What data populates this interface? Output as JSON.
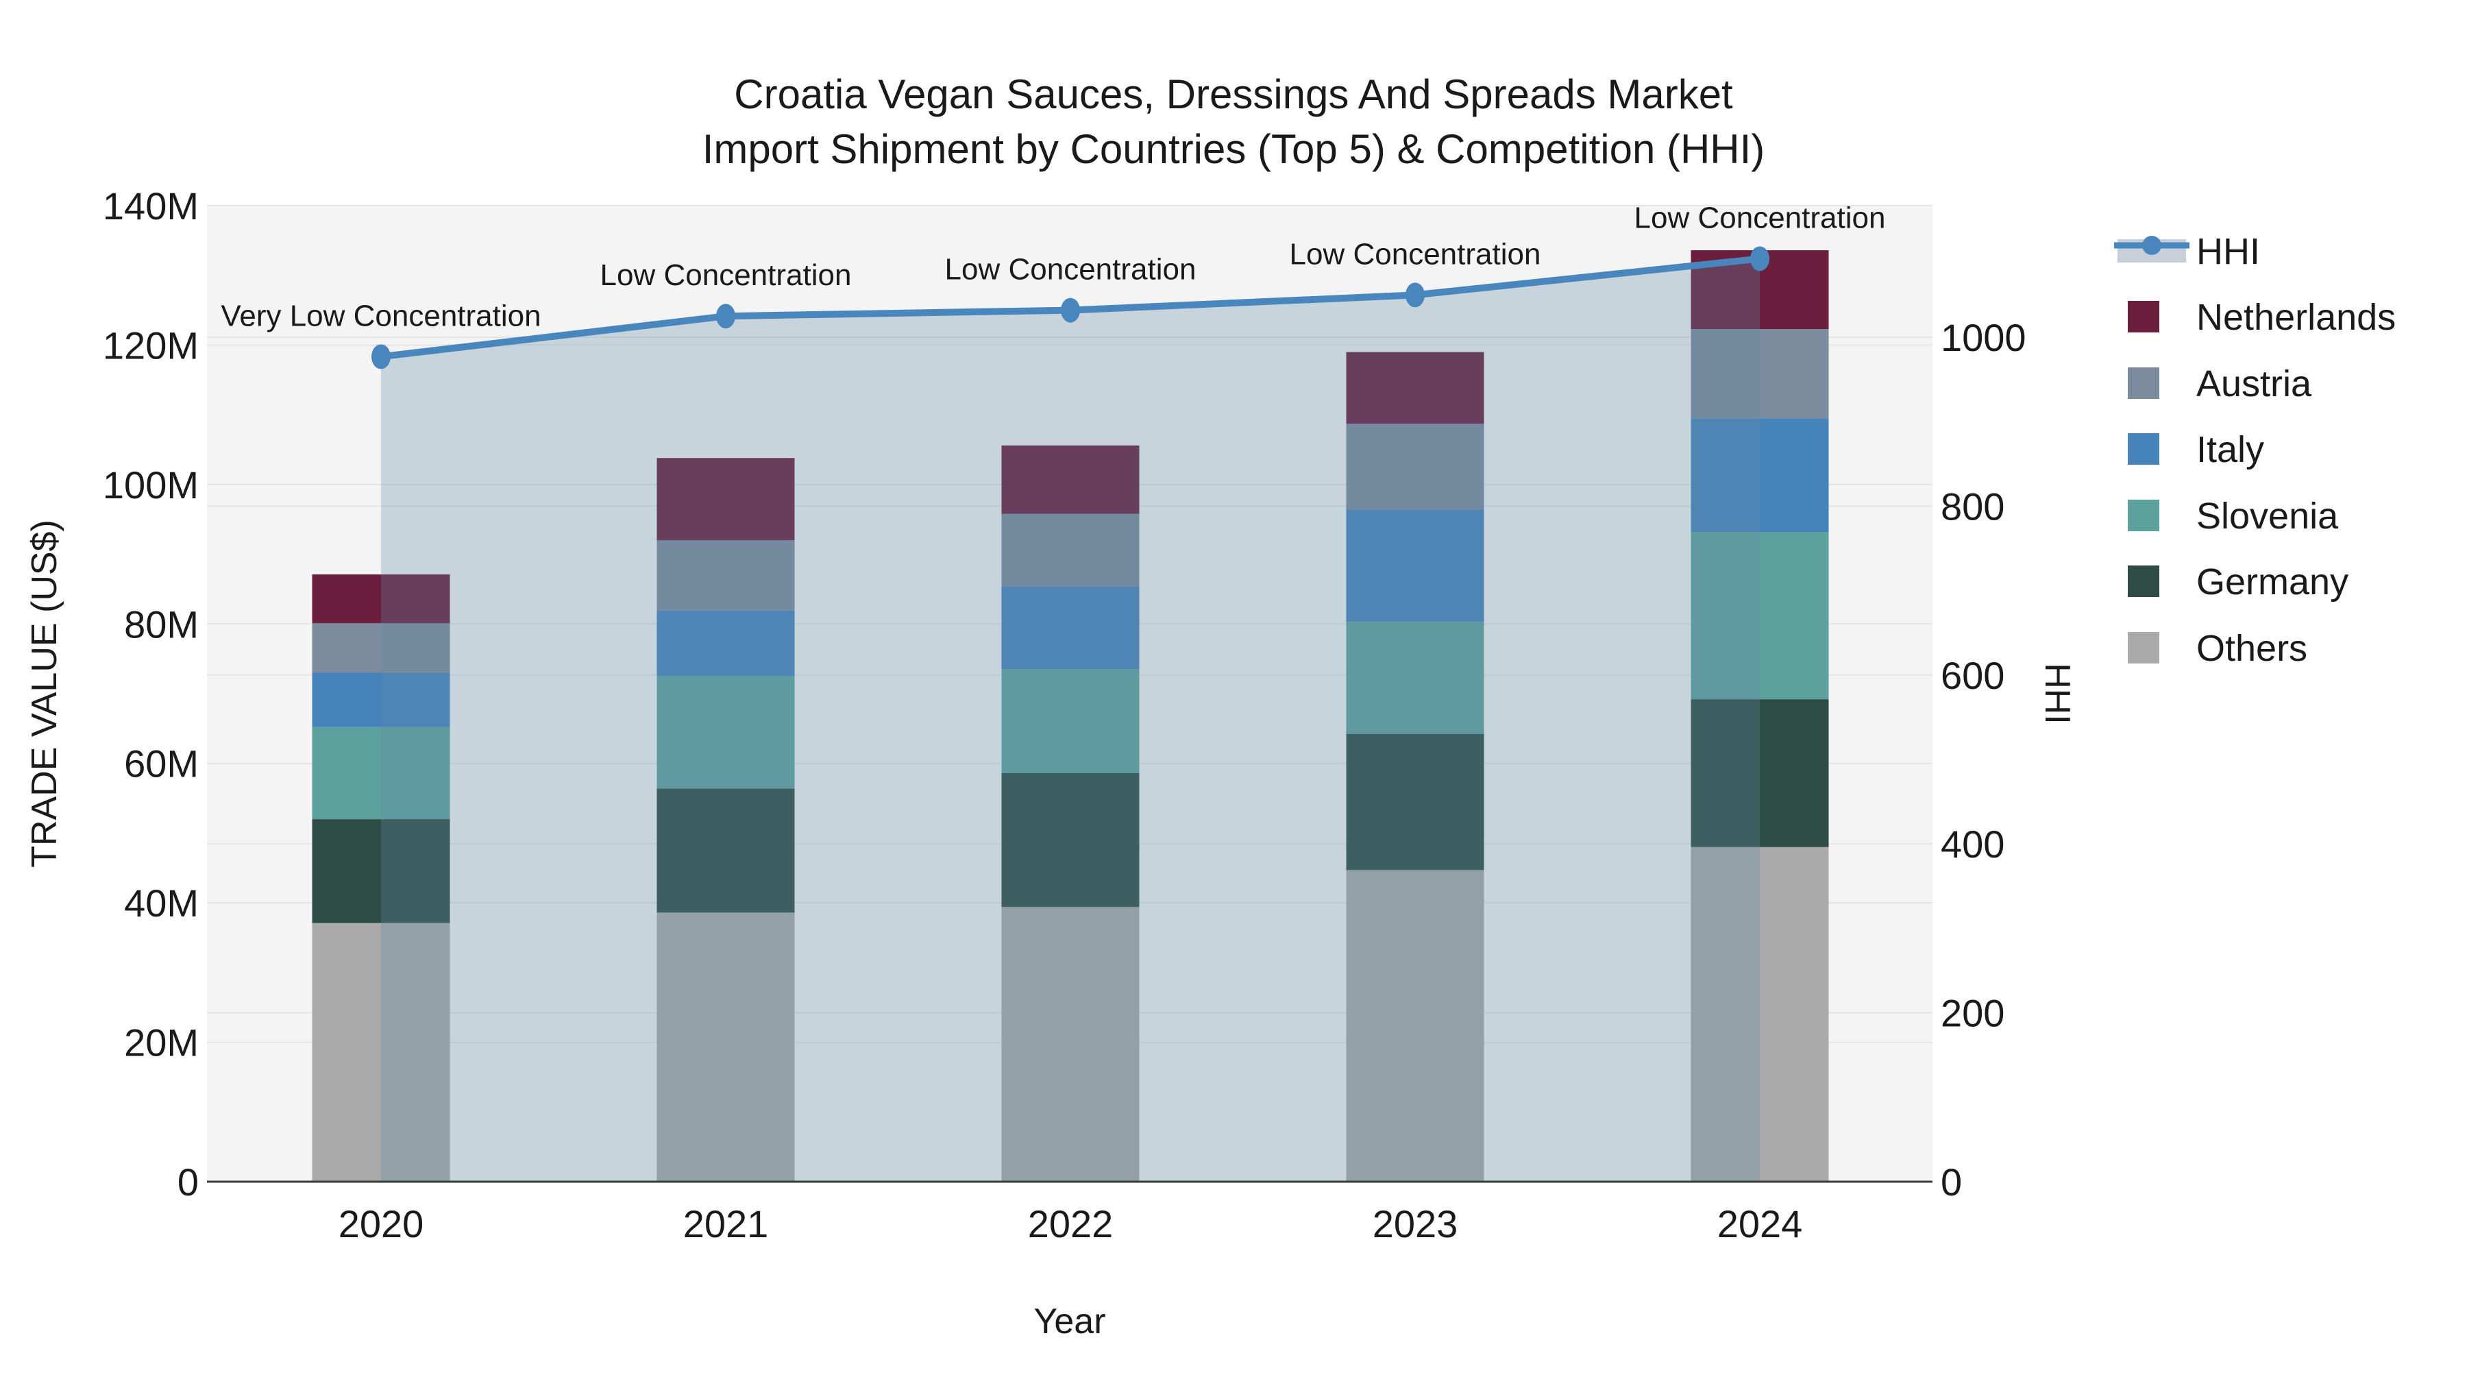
{
  "chart_data": {
    "type": "bar+line",
    "title_line1": "Croatia Vegan Sauces, Dressings And Spreads Market",
    "title_line2": "Import Shipment by Countries (Top 5) & Competition (HHI)",
    "xlabel": "Year",
    "ylabel_left": "TRADE VALUE (US$)",
    "ylabel_right": "HHI",
    "categories": [
      "2020",
      "2021",
      "2022",
      "2023",
      "2024"
    ],
    "stack_note": "stacked bar values in millions US$, bottom-to-top order as listed",
    "series": [
      {
        "name": "Others",
        "color": "#aaaaaa",
        "values": [
          37.1,
          38.6,
          39.4,
          44.7,
          48.0
        ]
      },
      {
        "name": "Germany",
        "color": "#2e4c46",
        "values": [
          14.9,
          17.8,
          19.2,
          19.5,
          21.2
        ]
      },
      {
        "name": "Slovenia",
        "color": "#5ca19d",
        "values": [
          13.2,
          16.1,
          14.9,
          16.1,
          24.0
        ]
      },
      {
        "name": "Italy",
        "color": "#4583ba",
        "values": [
          7.8,
          9.4,
          11.9,
          16.1,
          16.3
        ]
      },
      {
        "name": "Austria",
        "color": "#7c8b9d",
        "values": [
          7.1,
          10.1,
          10.4,
          12.3,
          12.8
        ]
      },
      {
        "name": "Netherlands",
        "color": "#6b1e3e",
        "values": [
          7.0,
          11.8,
          9.8,
          10.3,
          11.3
        ]
      }
    ],
    "hhi": {
      "name": "HHI",
      "color": "#4a86be",
      "area_color": "rgba(100,140,165,0.30)",
      "legend_band_color": "#c9cfd9",
      "values": [
        977,
        1025,
        1032,
        1050,
        1093
      ],
      "annotations": [
        "Very Low Concentration",
        "Low Concentration",
        "Low Concentration",
        "Low Concentration",
        "Low Concentration"
      ]
    },
    "y_left": {
      "ticks": [
        "0",
        "20M",
        "40M",
        "60M",
        "80M",
        "100M",
        "120M",
        "140M"
      ],
      "tick_values": [
        0,
        20,
        40,
        60,
        80,
        100,
        120,
        140
      ],
      "max": 140
    },
    "y_right": {
      "ticks": [
        "0",
        "200",
        "400",
        "600",
        "800",
        "1000"
      ],
      "tick_values": [
        0,
        200,
        400,
        600,
        800,
        1000
      ],
      "max": 1156
    },
    "legend_order": [
      "HHI",
      "Netherlands",
      "Austria",
      "Italy",
      "Slovenia",
      "Germany",
      "Others"
    ],
    "colors": {
      "plot_background": "#f4f4f4",
      "page_background": "#ffffff",
      "gridline": "#e4e4e4",
      "axis_line": "#3a3a3a",
      "text": "#1a1a1a"
    },
    "legend_position": "right",
    "grid": true
  }
}
